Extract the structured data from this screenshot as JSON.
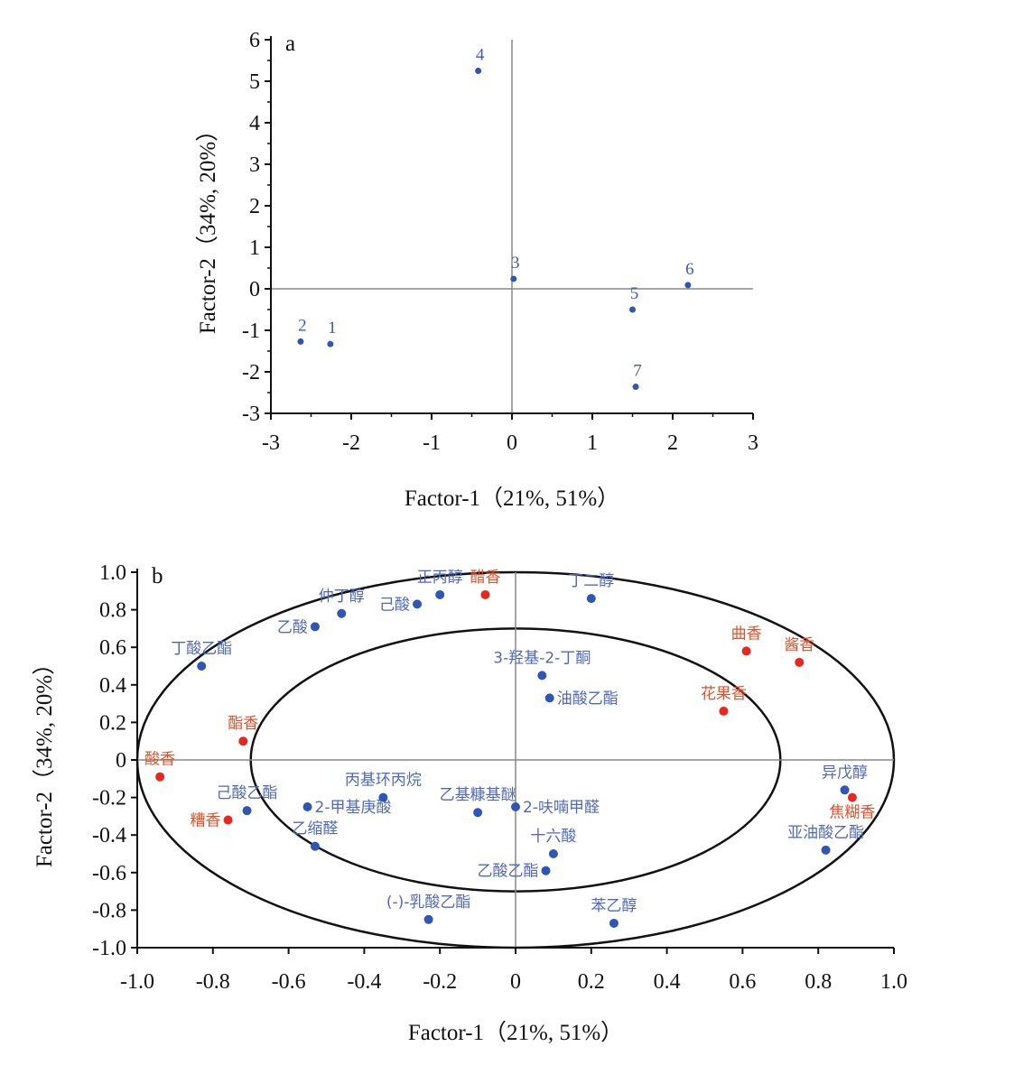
{
  "chart_data": [
    {
      "type": "scatter",
      "panel_label": "a",
      "xlabel": "Factor-1（21%, 51%）",
      "ylabel": "Factor-2（34%, 20%）",
      "xlim": [
        -3,
        3
      ],
      "ylim": [
        -3,
        6
      ],
      "xticks": [
        "-3",
        "-2",
        "-1",
        "0",
        "1",
        "2",
        "3"
      ],
      "yticks": [
        "-3",
        "-2",
        "-1",
        "0",
        "1",
        "2",
        "3",
        "4",
        "5",
        "6"
      ],
      "point_color": "#2f56b5",
      "points": [
        {
          "label": "1",
          "x": -2.26,
          "y": -1.33
        },
        {
          "label": "2",
          "x": -2.63,
          "y": -1.27
        },
        {
          "label": "3",
          "x": 0.02,
          "y": 0.24
        },
        {
          "label": "4",
          "x": -0.42,
          "y": 5.25
        },
        {
          "label": "5",
          "x": 1.5,
          "y": -0.5
        },
        {
          "label": "6",
          "x": 2.19,
          "y": 0.09
        },
        {
          "label": "7",
          "x": 1.54,
          "y": -2.36
        }
      ]
    },
    {
      "type": "scatter",
      "panel_label": "b",
      "xlabel": "Factor-1（21%, 51%）",
      "ylabel": "Factor-2（34%, 20%）",
      "xlim": [
        -1,
        1
      ],
      "ylim": [
        -1,
        1
      ],
      "xticks": [
        "-1.0",
        "-0.8",
        "-0.6",
        "-0.4",
        "-0.2",
        "0",
        "0.2",
        "0.4",
        "0.6",
        "0.8",
        "1.0"
      ],
      "yticks": [
        "-1.0",
        "-0.8",
        "-0.6",
        "-0.4",
        "-0.2",
        "0",
        "0.2",
        "0.4",
        "0.6",
        "0.8",
        "1.0"
      ],
      "ellipses": [
        1.0,
        0.7
      ],
      "colors": {
        "compound": "#2f56b5",
        "aroma": "#e8281e",
        "compound_text": "#5068c0",
        "aroma_text": "#e4502a"
      },
      "points": [
        {
          "label": "丁酸乙酯",
          "x": -0.83,
          "y": 0.5,
          "group": "compound"
        },
        {
          "label": "乙酸",
          "x": -0.53,
          "y": 0.71,
          "group": "compound"
        },
        {
          "label": "仲丁醇",
          "x": -0.46,
          "y": 0.78,
          "group": "compound"
        },
        {
          "label": "己酸",
          "x": -0.26,
          "y": 0.83,
          "group": "compound"
        },
        {
          "label": "正丙醇",
          "x": -0.2,
          "y": 0.88,
          "group": "compound"
        },
        {
          "label": "丁二醇",
          "x": 0.2,
          "y": 0.86,
          "group": "compound"
        },
        {
          "label": "3-羟基-2-丁酮",
          "x": 0.07,
          "y": 0.45,
          "group": "compound"
        },
        {
          "label": "油酸乙酯",
          "x": 0.09,
          "y": 0.33,
          "group": "compound"
        },
        {
          "label": "己酸乙酯",
          "x": -0.71,
          "y": -0.27,
          "group": "compound"
        },
        {
          "label": "2-甲基庚酸",
          "x": -0.55,
          "y": -0.25,
          "group": "compound"
        },
        {
          "label": "丙基环丙烷",
          "x": -0.35,
          "y": -0.2,
          "group": "compound"
        },
        {
          "label": "乙基糠基醚",
          "x": -0.1,
          "y": -0.28,
          "group": "compound"
        },
        {
          "label": "2-呋喃甲醛",
          "x": 0.0,
          "y": -0.25,
          "group": "compound"
        },
        {
          "label": "乙缩醛",
          "x": -0.53,
          "y": -0.46,
          "group": "compound"
        },
        {
          "label": "十六酸",
          "x": 0.1,
          "y": -0.5,
          "group": "compound"
        },
        {
          "label": "乙酸乙酯",
          "x": 0.08,
          "y": -0.59,
          "group": "compound"
        },
        {
          "label": "(-)-乳酸乙酯",
          "x": -0.23,
          "y": -0.85,
          "group": "compound"
        },
        {
          "label": "苯乙醇",
          "x": 0.26,
          "y": -0.87,
          "group": "compound"
        },
        {
          "label": "异戊醇",
          "x": 0.87,
          "y": -0.16,
          "group": "compound"
        },
        {
          "label": "亚油酸乙酯",
          "x": 0.82,
          "y": -0.48,
          "group": "compound"
        },
        {
          "label": "醋香",
          "x": -0.08,
          "y": 0.88,
          "group": "aroma"
        },
        {
          "label": "曲香",
          "x": 0.61,
          "y": 0.58,
          "group": "aroma"
        },
        {
          "label": "酱香",
          "x": 0.75,
          "y": 0.52,
          "group": "aroma"
        },
        {
          "label": "花果香",
          "x": 0.55,
          "y": 0.26,
          "group": "aroma"
        },
        {
          "label": "酯香",
          "x": -0.72,
          "y": 0.1,
          "group": "aroma"
        },
        {
          "label": "酸香",
          "x": -0.94,
          "y": -0.09,
          "group": "aroma"
        },
        {
          "label": "糟香",
          "x": -0.76,
          "y": -0.32,
          "group": "aroma"
        },
        {
          "label": "焦糊香",
          "x": 0.89,
          "y": -0.2,
          "group": "aroma"
        }
      ]
    }
  ]
}
